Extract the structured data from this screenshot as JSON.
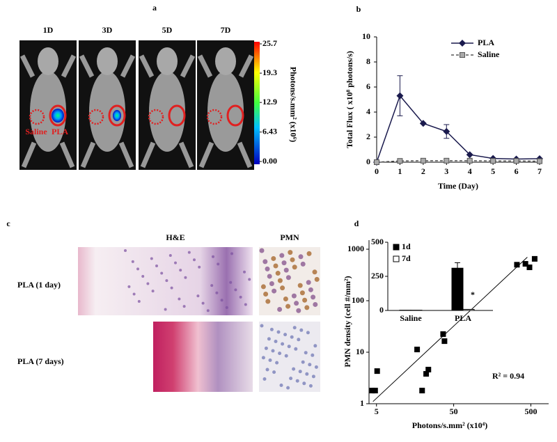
{
  "panels": {
    "a": {
      "letter": "a",
      "days": [
        "1D",
        "3D",
        "5D",
        "7D"
      ],
      "saline": "Saline",
      "pla": "PLA",
      "colorbar": {
        "label": "Photons/s.mm² (x10⁶)",
        "ticks": [
          25.7,
          19.3,
          12.9,
          6.43,
          {
            "value": 0,
            "label": "0.00"
          }
        ]
      }
    },
    "b": {
      "letter": "b"
    },
    "c": {
      "letter": "c",
      "columns": [
        "H&E",
        "PMN"
      ],
      "rows": [
        "PLA (1 day)",
        "PLA (7 days)"
      ]
    },
    "d": {
      "letter": "d"
    }
  },
  "chart_data": [
    {
      "type": "line",
      "x": [
        0,
        1,
        2,
        3,
        4,
        5,
        6,
        7
      ],
      "xlim": [
        0,
        7
      ],
      "xticks": [
        0,
        1,
        2,
        3,
        4,
        5,
        6,
        7
      ],
      "ylim": [
        0,
        10
      ],
      "yticks": [
        0,
        2,
        4,
        6,
        8,
        10
      ],
      "x_label": "Time (Day)",
      "y_label": "Total Flux ( x10⁸ photons/s)",
      "series": [
        {
          "name": "PLA",
          "color": "#1a1a4d",
          "linestyle": "solid",
          "marker": "diamond",
          "values": [
            0,
            5.3,
            3.1,
            2.45,
            0.6,
            0.3,
            0.25,
            0.28
          ],
          "errors": [
            null,
            1.6,
            null,
            0.55,
            null,
            null,
            null,
            null
          ]
        },
        {
          "name": "Saline",
          "color": "#555555",
          "linestyle": "dashed",
          "marker": "square",
          "values": [
            0,
            0.1,
            0.12,
            0.12,
            0.12,
            0.1,
            0.1,
            0.08
          ]
        }
      ]
    },
    {
      "type": "scatter",
      "xscale": "log",
      "yscale": "log",
      "xlim": [
        4,
        850
      ],
      "ylim": [
        1,
        1500
      ],
      "xticks": [
        5,
        50,
        500
      ],
      "yticks": [
        1,
        10,
        100,
        1000
      ],
      "x_label": "Photons/s.mm² (x10⁴)",
      "y_label": "PMN density  (cell #/mm²)",
      "color": "#000000",
      "x": [
        4.4,
        4.8,
        5.1,
        16.8,
        19.5,
        22,
        23.5,
        36.5,
        38,
        330,
        425,
        480,
        560
      ],
      "values": [
        1.8,
        1.8,
        4.3,
        11.3,
        1.8,
        3.8,
        4.6,
        22.5,
        16.4,
        500,
        520,
        445,
        650
      ],
      "fit": {
        "x": [
          4.5,
          450
        ],
        "y": [
          1.1,
          700
        ]
      },
      "annotation": "R² = 0.94"
    },
    {
      "type": "bar",
      "categories": [
        "Saline",
        "PLA"
      ],
      "ylim": [
        0,
        500
      ],
      "yticks": [
        0,
        250,
        500
      ],
      "annotation": "*",
      "series": [
        {
          "name": "1d",
          "color": "#000000",
          "values": [
            2,
            310
          ],
          "errors": [
            null,
            40
          ]
        },
        {
          "name": "7d",
          "color": "#ffffff",
          "values": [
            2,
            8
          ]
        }
      ]
    }
  ]
}
